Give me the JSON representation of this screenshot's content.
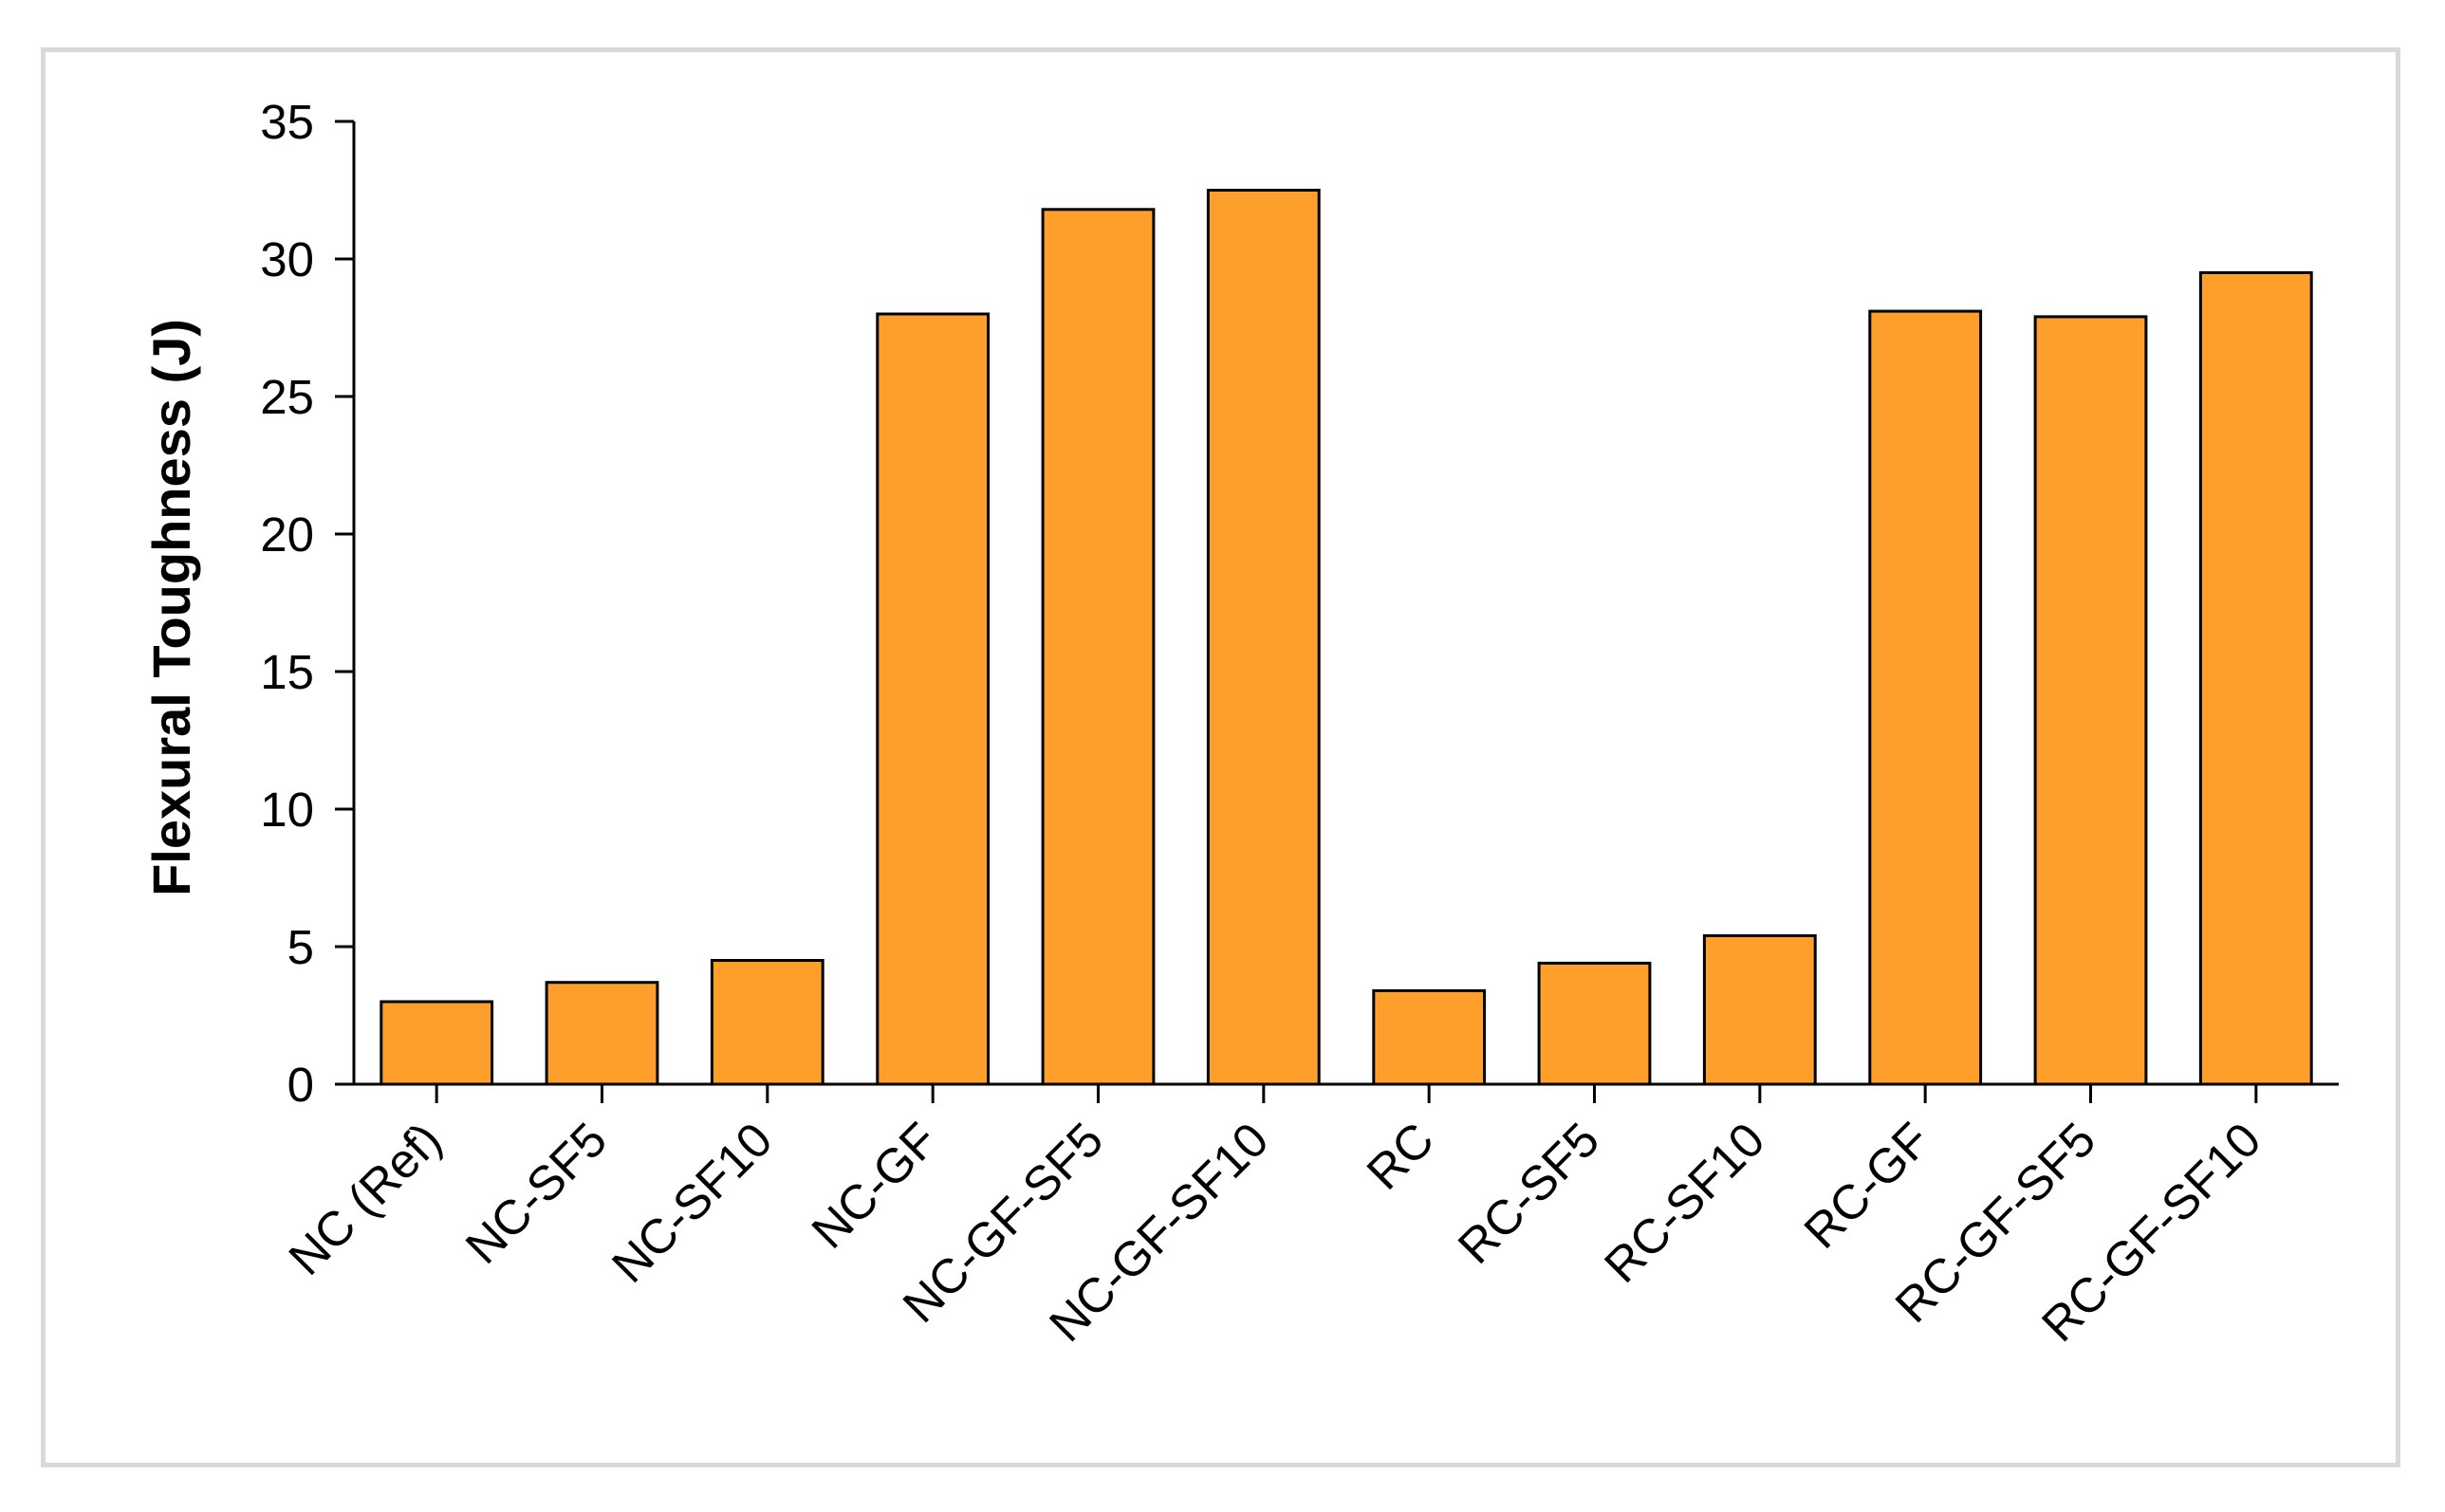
{
  "chart_data": {
    "type": "bar",
    "title": "",
    "xlabel": "",
    "ylabel": "Flexural Toughness (J)",
    "ylim": [
      0,
      35
    ],
    "yticks": [
      0,
      5,
      10,
      15,
      20,
      25,
      30,
      35
    ],
    "grid": false,
    "legend": "none",
    "categories": [
      "NC (Ref)",
      "NC-SF5",
      "NC-SF10",
      "NC-GF",
      "NC-GF-SF5",
      "NC-GF-SF10",
      "RC",
      "RC-SF5",
      "RC-SF10",
      "RC-GF",
      "RC-GF-SF5",
      "RC-GF-SF10"
    ],
    "values": [
      3.0,
      3.7,
      4.5,
      28.0,
      31.8,
      32.5,
      3.4,
      4.4,
      5.4,
      28.1,
      27.9,
      29.5
    ],
    "colors": {
      "bar_fill": "#ff9f2b",
      "bar_stroke": "#000000",
      "axis": "#000000",
      "frame": "#d9d9d9"
    }
  }
}
